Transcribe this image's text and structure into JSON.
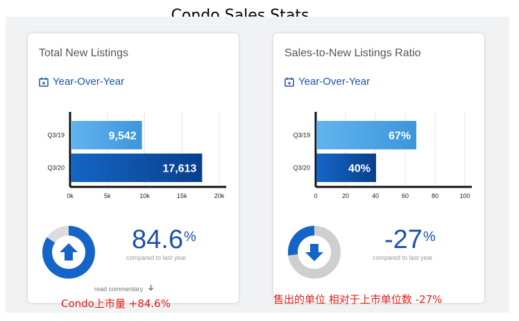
{
  "page_title": "Condo Sales Stats",
  "colors": {
    "accent": "#1a4fb0",
    "bar_light": "#4fa3e3",
    "bar_dark": "#0d4fa8",
    "caption": "#e41b17"
  },
  "chart_data": [
    {
      "type": "bar",
      "orientation": "horizontal",
      "title": "Total New Listings",
      "subtitle": "Year-Over-Year",
      "categories": [
        "Q3/19",
        "Q3/20"
      ],
      "values": [
        9542,
        17613
      ],
      "value_labels": [
        "9,542",
        "17,613"
      ],
      "xlim": [
        0,
        20000
      ],
      "x_ticks": [
        0,
        5000,
        10000,
        15000,
        20000
      ],
      "x_tick_labels": [
        "0k",
        "5k",
        "10k",
        "15k",
        "20k"
      ],
      "grid": true,
      "change": {
        "value": "84.6",
        "unit": "%",
        "direction": "up",
        "fraction": 0.846,
        "label": "compared to last year"
      },
      "footer_link": "read commentary",
      "caption": "Condo上市量 +84.6%"
    },
    {
      "type": "bar",
      "orientation": "horizontal",
      "title": "Sales-to-New Listings Ratio",
      "subtitle": "Year-Over-Year",
      "categories": [
        "Q3/19",
        "Q3/20"
      ],
      "values": [
        67,
        40
      ],
      "value_labels": [
        "67%",
        "40%"
      ],
      "xlim": [
        0,
        100
      ],
      "x_ticks": [
        0,
        20,
        40,
        60,
        80,
        100
      ],
      "x_tick_labels": [
        "0",
        "20",
        "40",
        "60",
        "80",
        "100"
      ],
      "grid": true,
      "change": {
        "value": "-27",
        "unit": "%",
        "direction": "down",
        "fraction": 0.27,
        "label": "compared to last year"
      },
      "caption": "售出的单位 相对于上市单位数 -27%"
    }
  ]
}
